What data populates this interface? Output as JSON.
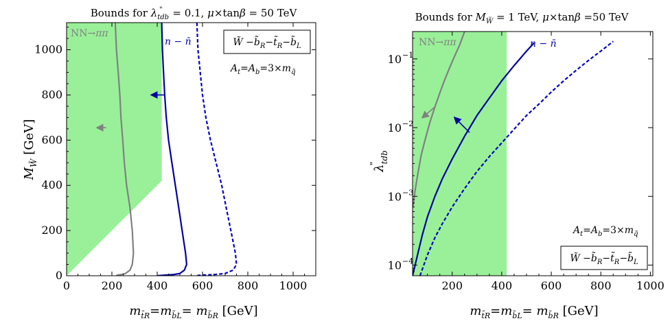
{
  "chart_data": [
    {
      "type": "line",
      "title": "Bounds for λ\"tdb = 0.1,  μ×tanβ = 50 TeV",
      "xlabel": "m t̃R = m b̃L = m b̃R [GeV]",
      "ylabel": "M W̃ [GeV]",
      "xlim": [
        0,
        1100
      ],
      "ylim": [
        0,
        1120
      ],
      "x_ticks": [
        0,
        200,
        400,
        600,
        800,
        1000
      ],
      "y_ticks": [
        0,
        200,
        400,
        600,
        800,
        1000
      ],
      "x_tick_labels": [
        "0",
        "200",
        "400",
        "600",
        "800",
        "1000"
      ],
      "y_tick_labels": [
        "0",
        "200",
        "400",
        "600",
        "800",
        "1000"
      ],
      "grid": false,
      "legend_box": "W̃ −b̃R−t̃R−b̃L",
      "annotation": "At=Ab=3×m q̃",
      "shaded_region": {
        "color": "#99f099",
        "polygon": [
          [
            0,
            0
          ],
          [
            0,
            1120
          ],
          [
            420,
            1120
          ],
          [
            420,
            420
          ]
        ]
      },
      "series": [
        {
          "name": "NN→ππ",
          "color": "#808080",
          "style": "solid",
          "x": [
            215,
            220,
            228,
            235,
            240,
            248,
            255,
            265,
            280,
            290,
            295,
            290,
            280,
            260,
            240,
            225,
            220
          ],
          "y": [
            1120,
            1000,
            900,
            800,
            700,
            600,
            500,
            400,
            300,
            200,
            100,
            50,
            25,
            10,
            5,
            3,
            0
          ],
          "arrow": {
            "from": [
              175,
              655
            ],
            "to": [
              135,
              655
            ]
          }
        },
        {
          "name": "n − n̄",
          "color": "#0000a0",
          "style": "solid",
          "x": [
            420,
            423,
            428,
            433,
            440,
            450,
            465,
            480,
            495,
            510,
            525,
            530,
            520,
            500,
            470,
            440,
            410,
            400
          ],
          "y": [
            1120,
            1000,
            900,
            800,
            700,
            600,
            500,
            400,
            300,
            200,
            100,
            50,
            25,
            10,
            5,
            3,
            1,
            0
          ],
          "arrow": {
            "from": [
              430,
              800
            ],
            "to": [
              375,
              800
            ]
          }
        },
        {
          "name": "n − n̄ (dashed)",
          "color": "#0000c0",
          "style": "dashed",
          "x": [
            575,
            580,
            590,
            600,
            615,
            635,
            660,
            685,
            705,
            725,
            745,
            750,
            735,
            700,
            650,
            600,
            570
          ],
          "y": [
            1120,
            1000,
            900,
            800,
            700,
            600,
            500,
            400,
            300,
            200,
            100,
            50,
            25,
            10,
            5,
            3,
            0
          ]
        }
      ]
    },
    {
      "type": "line",
      "title": "Bounds for M W̃ = 1 TeV,  μ×tanβ =50 TeV",
      "xlabel": "m t̃R = m b̃L = m b̃R [GeV]",
      "ylabel": "λ\"tdb",
      "xlim": [
        40,
        1010
      ],
      "ylim": [
        7e-05,
        0.25
      ],
      "y_scale": "log",
      "x_ticks": [
        200,
        400,
        600,
        800,
        1000
      ],
      "x_tick_labels": [
        "200",
        "400",
        "600",
        "800",
        "1000"
      ],
      "y_ticks": [
        0.0001,
        0.001,
        0.01,
        0.1
      ],
      "y_tick_labels": [
        "10",
        "10",
        "10",
        "10"
      ],
      "y_tick_exponents": [
        "−4",
        "−3",
        "−2",
        "−1"
      ],
      "grid": false,
      "legend_box": "W̃ −b̃R−t̃R−b̃L",
      "annotation": "At=Ab=3×m q̃",
      "shaded_region": {
        "color": "#99f099",
        "x_range": [
          40,
          420
        ]
      },
      "series": [
        {
          "name": "NN→ππ",
          "color": "#808080",
          "style": "solid",
          "x": [
            42,
            50,
            60,
            75,
            90,
            110,
            130,
            150,
            170,
            190,
            210,
            230,
            250
          ],
          "y": [
            0.0007,
            0.0012,
            0.002,
            0.004,
            0.0065,
            0.012,
            0.02,
            0.032,
            0.05,
            0.075,
            0.11,
            0.16,
            0.25
          ],
          "arrow": {
            "from": [
              130,
              0.02
            ],
            "to": [
              80,
              0.014
            ]
          }
        },
        {
          "name": "n − n̄",
          "color": "#0000a0",
          "style": "solid",
          "x": [
            40,
            60,
            80,
            100,
            130,
            160,
            200,
            250,
            300,
            350,
            400,
            450,
            500,
            530
          ],
          "y": [
            7e-05,
            0.00014,
            0.00028,
            0.0005,
            0.001,
            0.0018,
            0.0035,
            0.0075,
            0.015,
            0.027,
            0.048,
            0.08,
            0.13,
            0.17
          ],
          "arrow": {
            "from": [
              270,
              0.0085
            ],
            "to": [
              210,
              0.014
            ]
          }
        },
        {
          "name": "n − n̄ (dashed)",
          "color": "#0000c0",
          "style": "dashed",
          "x": [
            70,
            100,
            130,
            160,
            200,
            250,
            300,
            350,
            400,
            450,
            500,
            550,
            600,
            650,
            700,
            750,
            800,
            850
          ],
          "y": [
            7e-05,
            0.00014,
            0.00025,
            0.0004,
            0.0007,
            0.0013,
            0.0023,
            0.0038,
            0.006,
            0.0095,
            0.015,
            0.022,
            0.033,
            0.048,
            0.068,
            0.095,
            0.13,
            0.18
          ]
        }
      ]
    }
  ],
  "labels": {
    "left_title": "Bounds for λ\"tdb = 0.1,  μ×tanβ = 50 TeV",
    "right_title": "Bounds for M W̃ = 1 TeV,  μ×tanβ =50 TeV",
    "nn_label": "NN→ππ",
    "nnbar_label": "n − n̄",
    "box_label": "W̃ −b̃R−t̃R−b̃L",
    "at_label": "At=Ab=3×m q̃",
    "left_ylabel": "M W̃ [GeV]",
    "right_ylabel": "λ\"tdb",
    "xlabel": "m t̃R = m b̃L = m b̃R [GeV]"
  }
}
